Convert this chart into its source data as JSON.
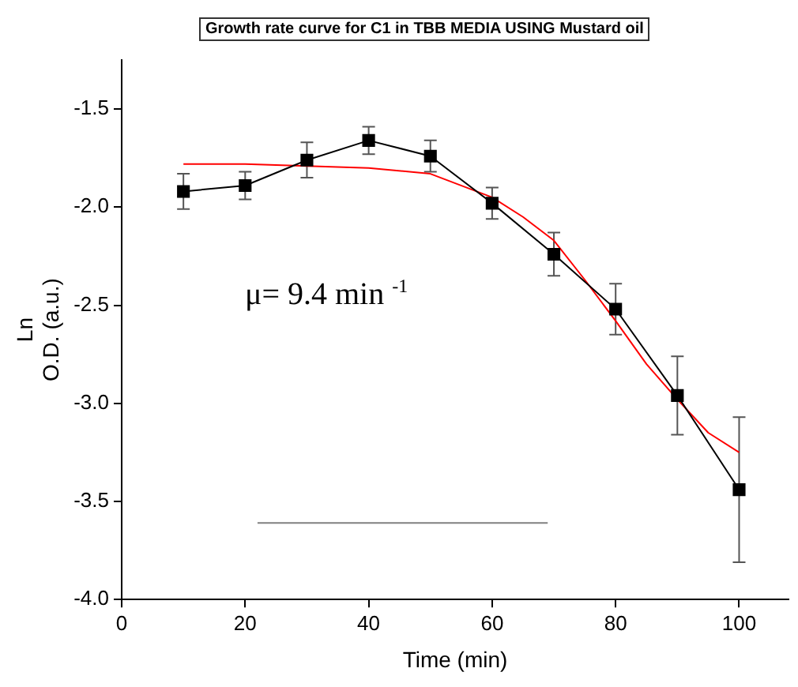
{
  "chart_data": {
    "type": "line",
    "title": "Growth rate curve for C1 in TBB MEDIA USING Mustard oil",
    "xlabel": "Time (min)",
    "ylabel": "Ln\nO.D. (a.u.)",
    "annotations": [
      "μ= 9.4 min $^{-1}$"
    ],
    "series": [
      {
        "color": "#000000",
        "marker": "square",
        "x": [
          10,
          20,
          30,
          40,
          50,
          60,
          70,
          80,
          90,
          100
        ],
        "values": [
          -1.92,
          -1.89,
          -1.76,
          -1.66,
          -1.74,
          -1.98,
          -2.24,
          -2.52,
          -2.96,
          -3.44
        ],
        "errors": [
          0.09,
          0.07,
          0.09,
          0.07,
          0.08,
          0.08,
          0.11,
          0.13,
          0.2,
          0.37
        ]
      },
      {
        "color": "#ff0000",
        "marker": "none",
        "x": [
          10,
          20,
          30,
          40,
          50,
          60,
          65,
          70,
          75,
          80,
          85,
          90,
          95,
          100
        ],
        "values": [
          -1.78,
          -1.78,
          -1.79,
          -1.8,
          -1.83,
          -1.95,
          -2.05,
          -2.17,
          -2.37,
          -2.58,
          -2.8,
          -2.98,
          -3.15,
          -3.25
        ]
      },
      {
        "color": "#808080",
        "marker": "none",
        "x": [
          22,
          69
        ],
        "values": [
          -3.61,
          -3.61
        ]
      }
    ],
    "xlim": [
      0,
      108
    ],
    "xticks": [
      0,
      20,
      40,
      60,
      80,
      100
    ],
    "ylim": [
      -4,
      -1.25
    ],
    "yticks": [
      {
        "value": -4,
        "label": "-4.0"
      },
      {
        "value": -3.5,
        "label": "-3.5"
      },
      {
        "value": -3,
        "label": "-3.0"
      },
      {
        "value": -2.5,
        "label": "-2.5"
      },
      {
        "value": -2,
        "label": "-2.0"
      },
      {
        "value": -1.5,
        "label": "-1.5"
      }
    ]
  }
}
